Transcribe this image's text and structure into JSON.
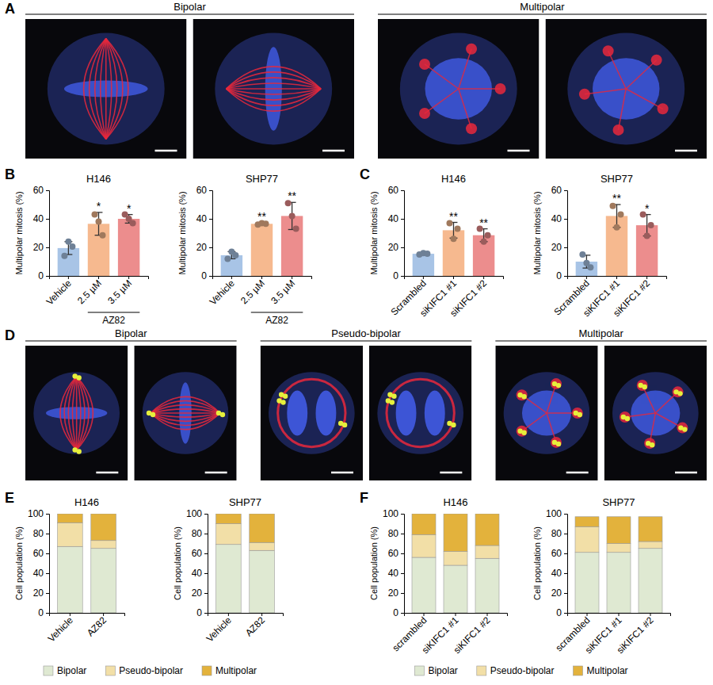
{
  "chart_data": [
    {
      "type": "bar",
      "panel": "B",
      "title": "H146",
      "y_label": "Multipolar mitosis (%)",
      "categories": [
        "Vehicle",
        "2.5 µM",
        "3.5 µM"
      ],
      "group": {
        "label": "AZ82",
        "from": "2.5 µM",
        "to": "3.5 µM"
      },
      "values": [
        19.5,
        36.5,
        40
      ],
      "errors": [
        4.5,
        8,
        3
      ],
      "points": [
        [
          14,
          24,
          20.5
        ],
        [
          43,
          38,
          28.5
        ],
        [
          43,
          40,
          37
        ]
      ],
      "significance": [
        null,
        "*",
        "*"
      ],
      "colors": [
        "#a8c4e6",
        "#f6b98f",
        "#ec8d8d"
      ],
      "ylim": [
        0,
        60
      ],
      "yticks": [
        0,
        20,
        40,
        60
      ]
    },
    {
      "type": "bar",
      "title": "SHP77",
      "y_label": "Multipolar mitosis (%)",
      "categories": [
        "Vehicle",
        "2.5 µM",
        "3.5 µM"
      ],
      "group": {
        "label": "AZ82",
        "from": "2.5 µM",
        "to": "3.5 µM"
      },
      "values": [
        14.5,
        36.5,
        42
      ],
      "errors": [
        2.5,
        0.7,
        9.5
      ],
      "points": [
        [
          12,
          17,
          14.5
        ],
        [
          36,
          37,
          36.5
        ],
        [
          51,
          42,
          33
        ]
      ],
      "significance": [
        null,
        "**",
        "**"
      ],
      "colors": [
        "#a8c4e6",
        "#f6b98f",
        "#ec8d8d"
      ],
      "ylim": [
        0,
        60
      ],
      "yticks": [
        0,
        20,
        40,
        60
      ]
    },
    {
      "type": "bar",
      "panel": "C",
      "title": "H146",
      "y_label": "Multipolar mitosis (%)",
      "categories": [
        "Scrambled",
        "siKIFC1 #1",
        "siKIFC1 #2"
      ],
      "values": [
        15.5,
        32,
        28.5
      ],
      "errors": [
        0.8,
        5.5,
        4.5
      ],
      "points": [
        [
          15,
          16,
          15.5
        ],
        [
          37,
          26,
          33
        ],
        [
          33,
          24,
          28.5
        ]
      ],
      "significance": [
        null,
        "**",
        "**"
      ],
      "colors": [
        "#a8c4e6",
        "#f6b98f",
        "#ec8d8d"
      ],
      "ylim": [
        0,
        60
      ],
      "yticks": [
        0,
        20,
        40,
        60
      ]
    },
    {
      "type": "bar",
      "title": "SHP77",
      "y_label": "Multipolar mitosis (%)",
      "categories": [
        "Scrambled",
        "siKIFC1 #1",
        "siKIFC1 #2"
      ],
      "values": [
        10,
        42,
        35.5
      ],
      "errors": [
        4.5,
        8,
        7.5
      ],
      "points": [
        [
          15,
          9,
          6
        ],
        [
          49,
          34,
          43
        ],
        [
          43,
          28,
          35.5
        ]
      ],
      "significance": [
        null,
        "**",
        "*"
      ],
      "colors": [
        "#a8c4e6",
        "#f6b98f",
        "#ec8d8d"
      ],
      "ylim": [
        0,
        60
      ],
      "yticks": [
        0,
        20,
        40,
        60
      ]
    },
    {
      "type": "bar",
      "stacked": true,
      "panel": "E",
      "title": "H146",
      "y_label": "Cell population (%)",
      "categories": [
        "Vehicle",
        "AZ82"
      ],
      "series": [
        {
          "name": "Bipolar",
          "color": "#dfe9d2",
          "values": [
            67,
            65
          ]
        },
        {
          "name": "Pseudo-bipolar",
          "color": "#f2dfa7",
          "values": [
            24,
            8
          ]
        },
        {
          "name": "Multipolar",
          "color": "#e3b23c",
          "values": [
            9,
            27
          ]
        }
      ],
      "legend": "bottom",
      "ylim": [
        0,
        100
      ],
      "yticks": [
        0,
        20,
        40,
        60,
        80,
        100
      ]
    },
    {
      "type": "bar",
      "stacked": true,
      "title": "SHP77",
      "y_label": "Cell population (%)",
      "categories": [
        "Vehicle",
        "AZ82"
      ],
      "series": [
        {
          "color": "#dfe9d2",
          "values": [
            69,
            63
          ]
        },
        {
          "color": "#f2dfa7",
          "values": [
            21,
            8
          ]
        },
        {
          "color": "#e3b23c",
          "values": [
            10,
            29
          ]
        }
      ],
      "ylim": [
        0,
        100
      ],
      "yticks": [
        0,
        20,
        40,
        60,
        80,
        100
      ]
    },
    {
      "type": "bar",
      "stacked": true,
      "panel": "F",
      "title": "H146",
      "y_label": "Cell population (%)",
      "categories": [
        "scrambled",
        "siKIFC1 #1",
        "siKIFC1 #2"
      ],
      "series": [
        {
          "name": "Bipolar",
          "color": "#dfe9d2",
          "values": [
            56,
            48,
            55
          ]
        },
        {
          "name": "Pseudo-bipolar",
          "color": "#f2dfa7",
          "values": [
            23,
            14,
            13
          ]
        },
        {
          "name": "Multipolar",
          "color": "#e3b23c",
          "values": [
            21,
            38,
            32
          ]
        }
      ],
      "legend": "bottom",
      "ylim": [
        0,
        100
      ],
      "yticks": [
        0,
        20,
        40,
        60,
        80,
        100
      ]
    },
    {
      "type": "bar",
      "stacked": true,
      "title": "SHP77",
      "y_label": "Cell population (%)",
      "categories": [
        "scrambled",
        "siKIFC1 #1",
        "siKIFC1 #2"
      ],
      "series": [
        {
          "color": "#dfe9d2",
          "values": [
            61,
            61,
            65
          ]
        },
        {
          "color": "#f2dfa7",
          "values": [
            26,
            9,
            7
          ]
        },
        {
          "color": "#e3b23c",
          "values": [
            10,
            27,
            25
          ]
        }
      ],
      "ylim": [
        0,
        100
      ],
      "yticks": [
        0,
        20,
        40,
        60,
        80,
        100
      ]
    }
  ],
  "image_panels": [
    {
      "panel": "A",
      "groups": [
        "Bipolar",
        "Multipolar"
      ]
    },
    {
      "panel": "D",
      "groups": [
        "Bipolar",
        "Pseudo-bipolar",
        "Multipolar"
      ]
    }
  ]
}
